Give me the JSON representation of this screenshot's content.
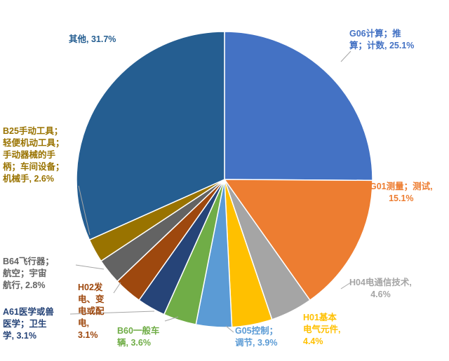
{
  "chart_data": {
    "type": "pie",
    "title": "",
    "start_angle_deg": 0,
    "direction": "clockwise",
    "legend": "none",
    "slices": [
      {
        "lines": [
          "G06计算；推",
          "算；计数, 25.1%"
        ],
        "category": "G06计算；推算；计数",
        "value": 25.1,
        "color": "#4472c4"
      },
      {
        "lines": [
          "G01测量；测试,",
          "15.1%"
        ],
        "category": "G01测量；测试",
        "value": 15.1,
        "color": "#ed7d31"
      },
      {
        "lines": [
          "H04电通信技术,",
          "4.6%"
        ],
        "category": "H04电通信技术",
        "value": 4.6,
        "color": "#a5a5a5"
      },
      {
        "lines": [
          "H01基本",
          "电气元件,",
          "4.4%"
        ],
        "category": "H01基本电气元件",
        "value": 4.4,
        "color": "#ffc000"
      },
      {
        "lines": [
          "G05控制；",
          "调节, 3.9%"
        ],
        "category": "G05控制；调节",
        "value": 3.9,
        "color": "#5b9bd5"
      },
      {
        "lines": [
          "B60一般车",
          "辆, 3.6%"
        ],
        "category": "B60一般车辆",
        "value": 3.6,
        "color": "#70ad47"
      },
      {
        "lines": [
          "A61医学或兽",
          "医学；卫生",
          "学, 3.1%"
        ],
        "category": "A61医学或兽医学；卫生学",
        "value": 3.1,
        "color": "#264478"
      },
      {
        "lines": [
          "H02发",
          "电、变",
          "电或配",
          "电,",
          "3.1%"
        ],
        "category": "H02发电、变电或配电",
        "value": 3.1,
        "color": "#9e480e"
      },
      {
        "lines": [
          "B64飞行器；",
          "航空；宇宙",
          "航行, 2.8%"
        ],
        "category": "B64飞行器；航空；宇宙航行",
        "value": 2.8,
        "color": "#636363"
      },
      {
        "lines": [
          "B25手动工具；",
          "轻便机动工具；",
          "手动器械的手",
          "柄；车间设备；",
          "机械手, 2.6%"
        ],
        "category": "B25手动工具；轻便机动工具；手动器械的手柄；车间设备；机械手",
        "value": 2.6,
        "color": "#997300"
      },
      {
        "lines": [
          "其他, 31.7%"
        ],
        "category": "其他",
        "value": 31.7,
        "color": "#255e91"
      }
    ]
  }
}
